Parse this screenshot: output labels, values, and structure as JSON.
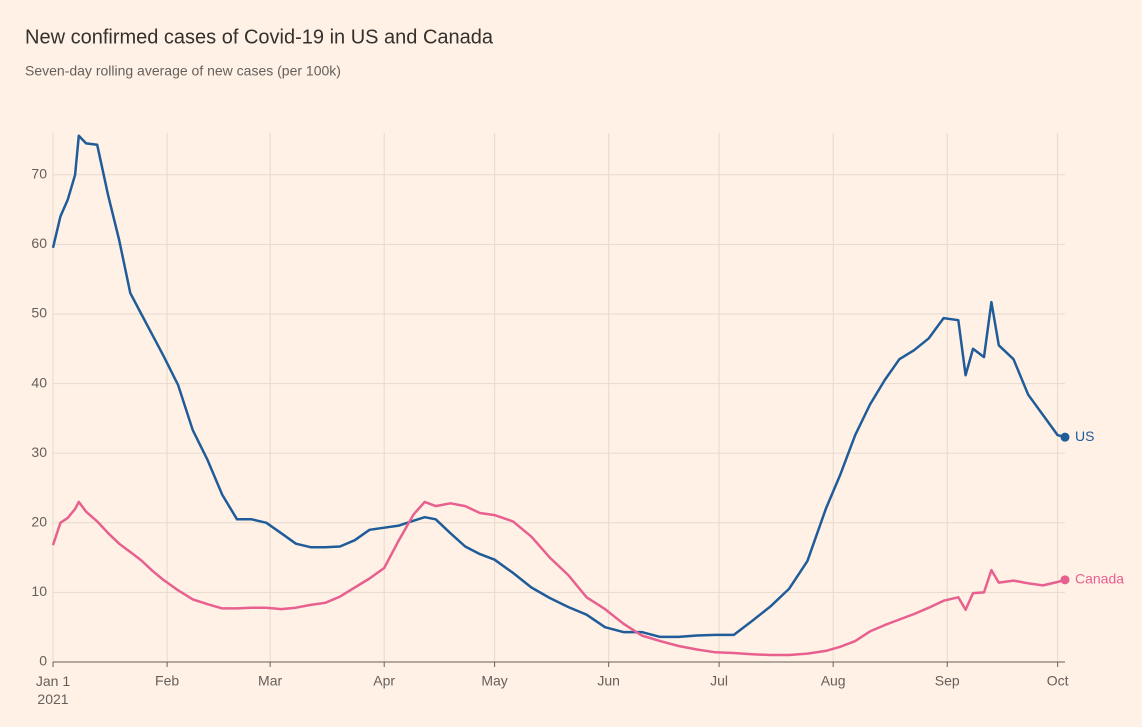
{
  "chart_data": {
    "type": "line",
    "title": "New confirmed cases of Covid-19 in US and Canada",
    "subtitle": "Seven-day rolling average of new cases (per 100k)",
    "x": [
      "2021-01-01",
      "2021-01-03",
      "2021-01-05",
      "2021-01-07",
      "2021-01-08",
      "2021-01-10",
      "2021-01-13",
      "2021-01-16",
      "2021-01-19",
      "2021-01-22",
      "2021-01-25",
      "2021-01-28",
      "2021-01-31",
      "2021-02-04",
      "2021-02-08",
      "2021-02-12",
      "2021-02-16",
      "2021-02-20",
      "2021-02-24",
      "2021-02-28",
      "2021-03-04",
      "2021-03-08",
      "2021-03-12",
      "2021-03-16",
      "2021-03-20",
      "2021-03-24",
      "2021-03-28",
      "2021-04-01",
      "2021-04-05",
      "2021-04-09",
      "2021-04-12",
      "2021-04-15",
      "2021-04-19",
      "2021-04-23",
      "2021-04-27",
      "2021-05-01",
      "2021-05-06",
      "2021-05-11",
      "2021-05-16",
      "2021-05-21",
      "2021-05-26",
      "2021-05-31",
      "2021-06-05",
      "2021-06-10",
      "2021-06-15",
      "2021-06-20",
      "2021-06-25",
      "2021-06-30",
      "2021-07-05",
      "2021-07-10",
      "2021-07-15",
      "2021-07-20",
      "2021-07-25",
      "2021-07-30",
      "2021-08-03",
      "2021-08-07",
      "2021-08-11",
      "2021-08-15",
      "2021-08-19",
      "2021-08-23",
      "2021-08-27",
      "2021-08-31",
      "2021-09-04",
      "2021-09-06",
      "2021-09-08",
      "2021-09-11",
      "2021-09-13",
      "2021-09-15",
      "2021-09-19",
      "2021-09-23",
      "2021-09-27",
      "2021-10-01",
      "2021-10-03"
    ],
    "series": [
      {
        "name": "US",
        "color": "#1f5c99",
        "values": [
          59.5,
          64,
          66.4,
          70,
          75.6,
          74.5,
          74.3,
          67,
          60.6,
          53,
          50,
          47,
          44,
          39.8,
          33.3,
          29,
          24,
          20.5,
          20.5,
          20,
          18.5,
          17,
          16.5,
          16.5,
          16.6,
          17.5,
          19,
          19.3,
          19.6,
          20.3,
          20.8,
          20.5,
          18.5,
          16.6,
          15.5,
          14.7,
          12.8,
          10.7,
          9.2,
          7.9,
          6.8,
          5,
          4.3,
          4.3,
          3.6,
          3.6,
          3.8,
          3.9,
          3.9,
          5.9,
          8,
          10.5,
          14.5,
          22,
          27,
          32.6,
          37,
          40.5,
          43.5,
          44.8,
          46.5,
          49.4,
          49.1,
          41.2,
          45,
          43.8,
          51.7,
          45.5,
          43.5,
          38.4,
          35.5,
          32.6,
          32.3
        ]
      },
      {
        "name": "Canada",
        "color": "#e8608f",
        "values": [
          16.8,
          20,
          20.7,
          22,
          23,
          21.6,
          20.2,
          18.5,
          17,
          15.8,
          14.6,
          13.1,
          11.8,
          10.3,
          9,
          8.3,
          7.7,
          7.7,
          7.8,
          7.8,
          7.6,
          7.8,
          8.2,
          8.5,
          9.4,
          10.7,
          12,
          13.5,
          17.5,
          21.2,
          23,
          22.4,
          22.8,
          22.4,
          21.4,
          21.1,
          20.2,
          18,
          15,
          12.5,
          9.3,
          7.6,
          5.5,
          3.8,
          3,
          2.3,
          1.8,
          1.4,
          1.3,
          1.1,
          1,
          1,
          1.2,
          1.6,
          2.2,
          3,
          4.4,
          5.3,
          6.1,
          6.9,
          7.8,
          8.8,
          9.3,
          7.5,
          9.9,
          10,
          13.2,
          11.4,
          11.7,
          11.3,
          11,
          11.5,
          11.8
        ]
      }
    ],
    "xlim": [
      "2021-01-01",
      "2021-10-03"
    ],
    "xticks": [
      {
        "value": "2021-01-01",
        "label": "Jan 1\n2021"
      },
      {
        "value": "2021-02-01",
        "label": "Feb"
      },
      {
        "value": "2021-03-01",
        "label": "Mar"
      },
      {
        "value": "2021-04-01",
        "label": "Apr"
      },
      {
        "value": "2021-05-01",
        "label": "May"
      },
      {
        "value": "2021-06-01",
        "label": "Jun"
      },
      {
        "value": "2021-07-01",
        "label": "Jul"
      },
      {
        "value": "2021-08-01",
        "label": "Aug"
      },
      {
        "value": "2021-09-01",
        "label": "Sep"
      },
      {
        "value": "2021-10-01",
        "label": "Oct"
      }
    ],
    "ylim": [
      0,
      76
    ],
    "yticks": [
      0,
      10,
      20,
      30,
      40,
      50,
      60,
      70
    ],
    "grid": true
  }
}
